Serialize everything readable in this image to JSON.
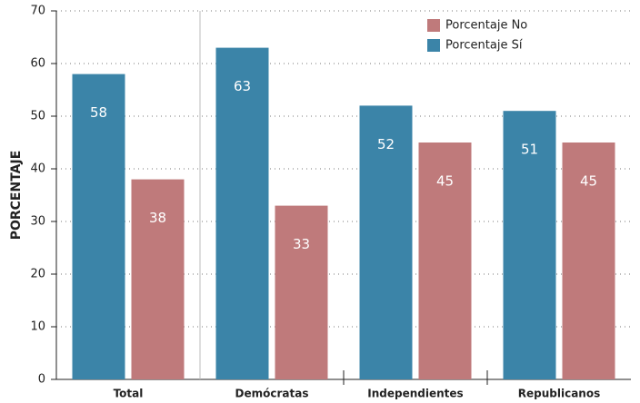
{
  "chart_data": {
    "type": "bar",
    "y_label": "PORCENTAJE",
    "categories": [
      "Total",
      "Demócratas",
      "Independientes",
      "Republicanos"
    ],
    "series": [
      {
        "name": "Porcentaje Sí",
        "color": "#3b84a8",
        "values": [
          58,
          63,
          52,
          51
        ]
      },
      {
        "name": "Porcentaje No",
        "color": "#bf7a7b",
        "values": [
          38,
          33,
          45,
          45
        ]
      }
    ],
    "ylim": [
      0,
      70
    ],
    "yticks": [
      0,
      10,
      20,
      30,
      40,
      50,
      60,
      70
    ],
    "grid": true
  }
}
